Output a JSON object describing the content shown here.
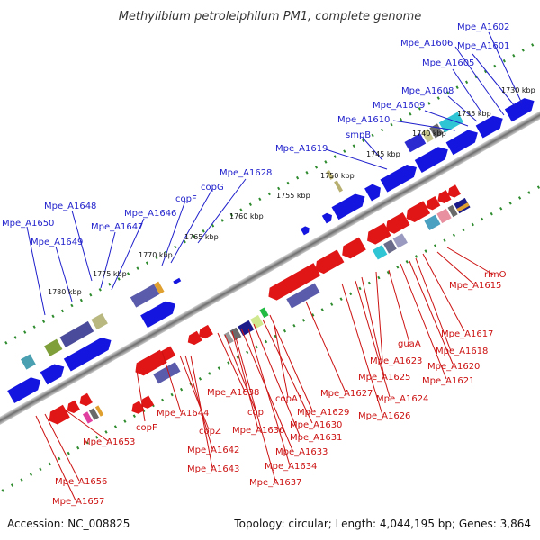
{
  "title": "Methylibium petroleiphilum PM1, complete genome",
  "footer": {
    "accession": "Accession: NC_008825",
    "summary": "Topology: circular; Length: 4,044,195 bp; Genes: 3,864"
  },
  "ticks": [
    "1730 kbp",
    "1735 kbp",
    "1740 kbp",
    "1745 kbp",
    "1750 kbp",
    "1755 kbp",
    "1760 kbp",
    "1765 kbp",
    "1770 kbp",
    "1775 kbp",
    "1780 kbp"
  ],
  "labels_forward": [
    "Mpe_A1602",
    "Mpe_A1606",
    "Mpe_A1601",
    "Mpe_A1605",
    "Mpe_A1608",
    "Mpe_A1609",
    "Mpe_A1610",
    "smpB",
    "Mpe_A1619",
    "Mpe_A1628",
    "copG",
    "copF",
    "Mpe_A1646",
    "Mpe_A1648",
    "Mpe_A1647",
    "Mpe_A1650",
    "Mpe_A1649"
  ],
  "labels_reverse": [
    "rimO",
    "Mpe_A1615",
    "Mpe_A1617",
    "Mpe_A1618",
    "guaA",
    "Mpe_A1620",
    "Mpe_A1621",
    "Mpe_A1623",
    "Mpe_A1625",
    "Mpe_A1624",
    "Mpe_A1627",
    "Mpe_A1626",
    "copA1",
    "Mpe_A1629",
    "Mpe_A1630",
    "Mpe_A1631",
    "Mpe_A1638",
    "copI",
    "Mpe_A1636",
    "Mpe_A1633",
    "Mpe_A1634",
    "Mpe_A1637",
    "Mpe_A1644",
    "copZ",
    "Mpe_A1642",
    "Mpe_A1643",
    "copF",
    "Mpe_A1653",
    "Mpe_A1656",
    "Mpe_A1657"
  ],
  "colors": {
    "forward_gene": "#1f1fcc",
    "reverse_gene": "#cc1111",
    "backbone": "#808080",
    "tick_dots": "#2e8b2e"
  }
}
